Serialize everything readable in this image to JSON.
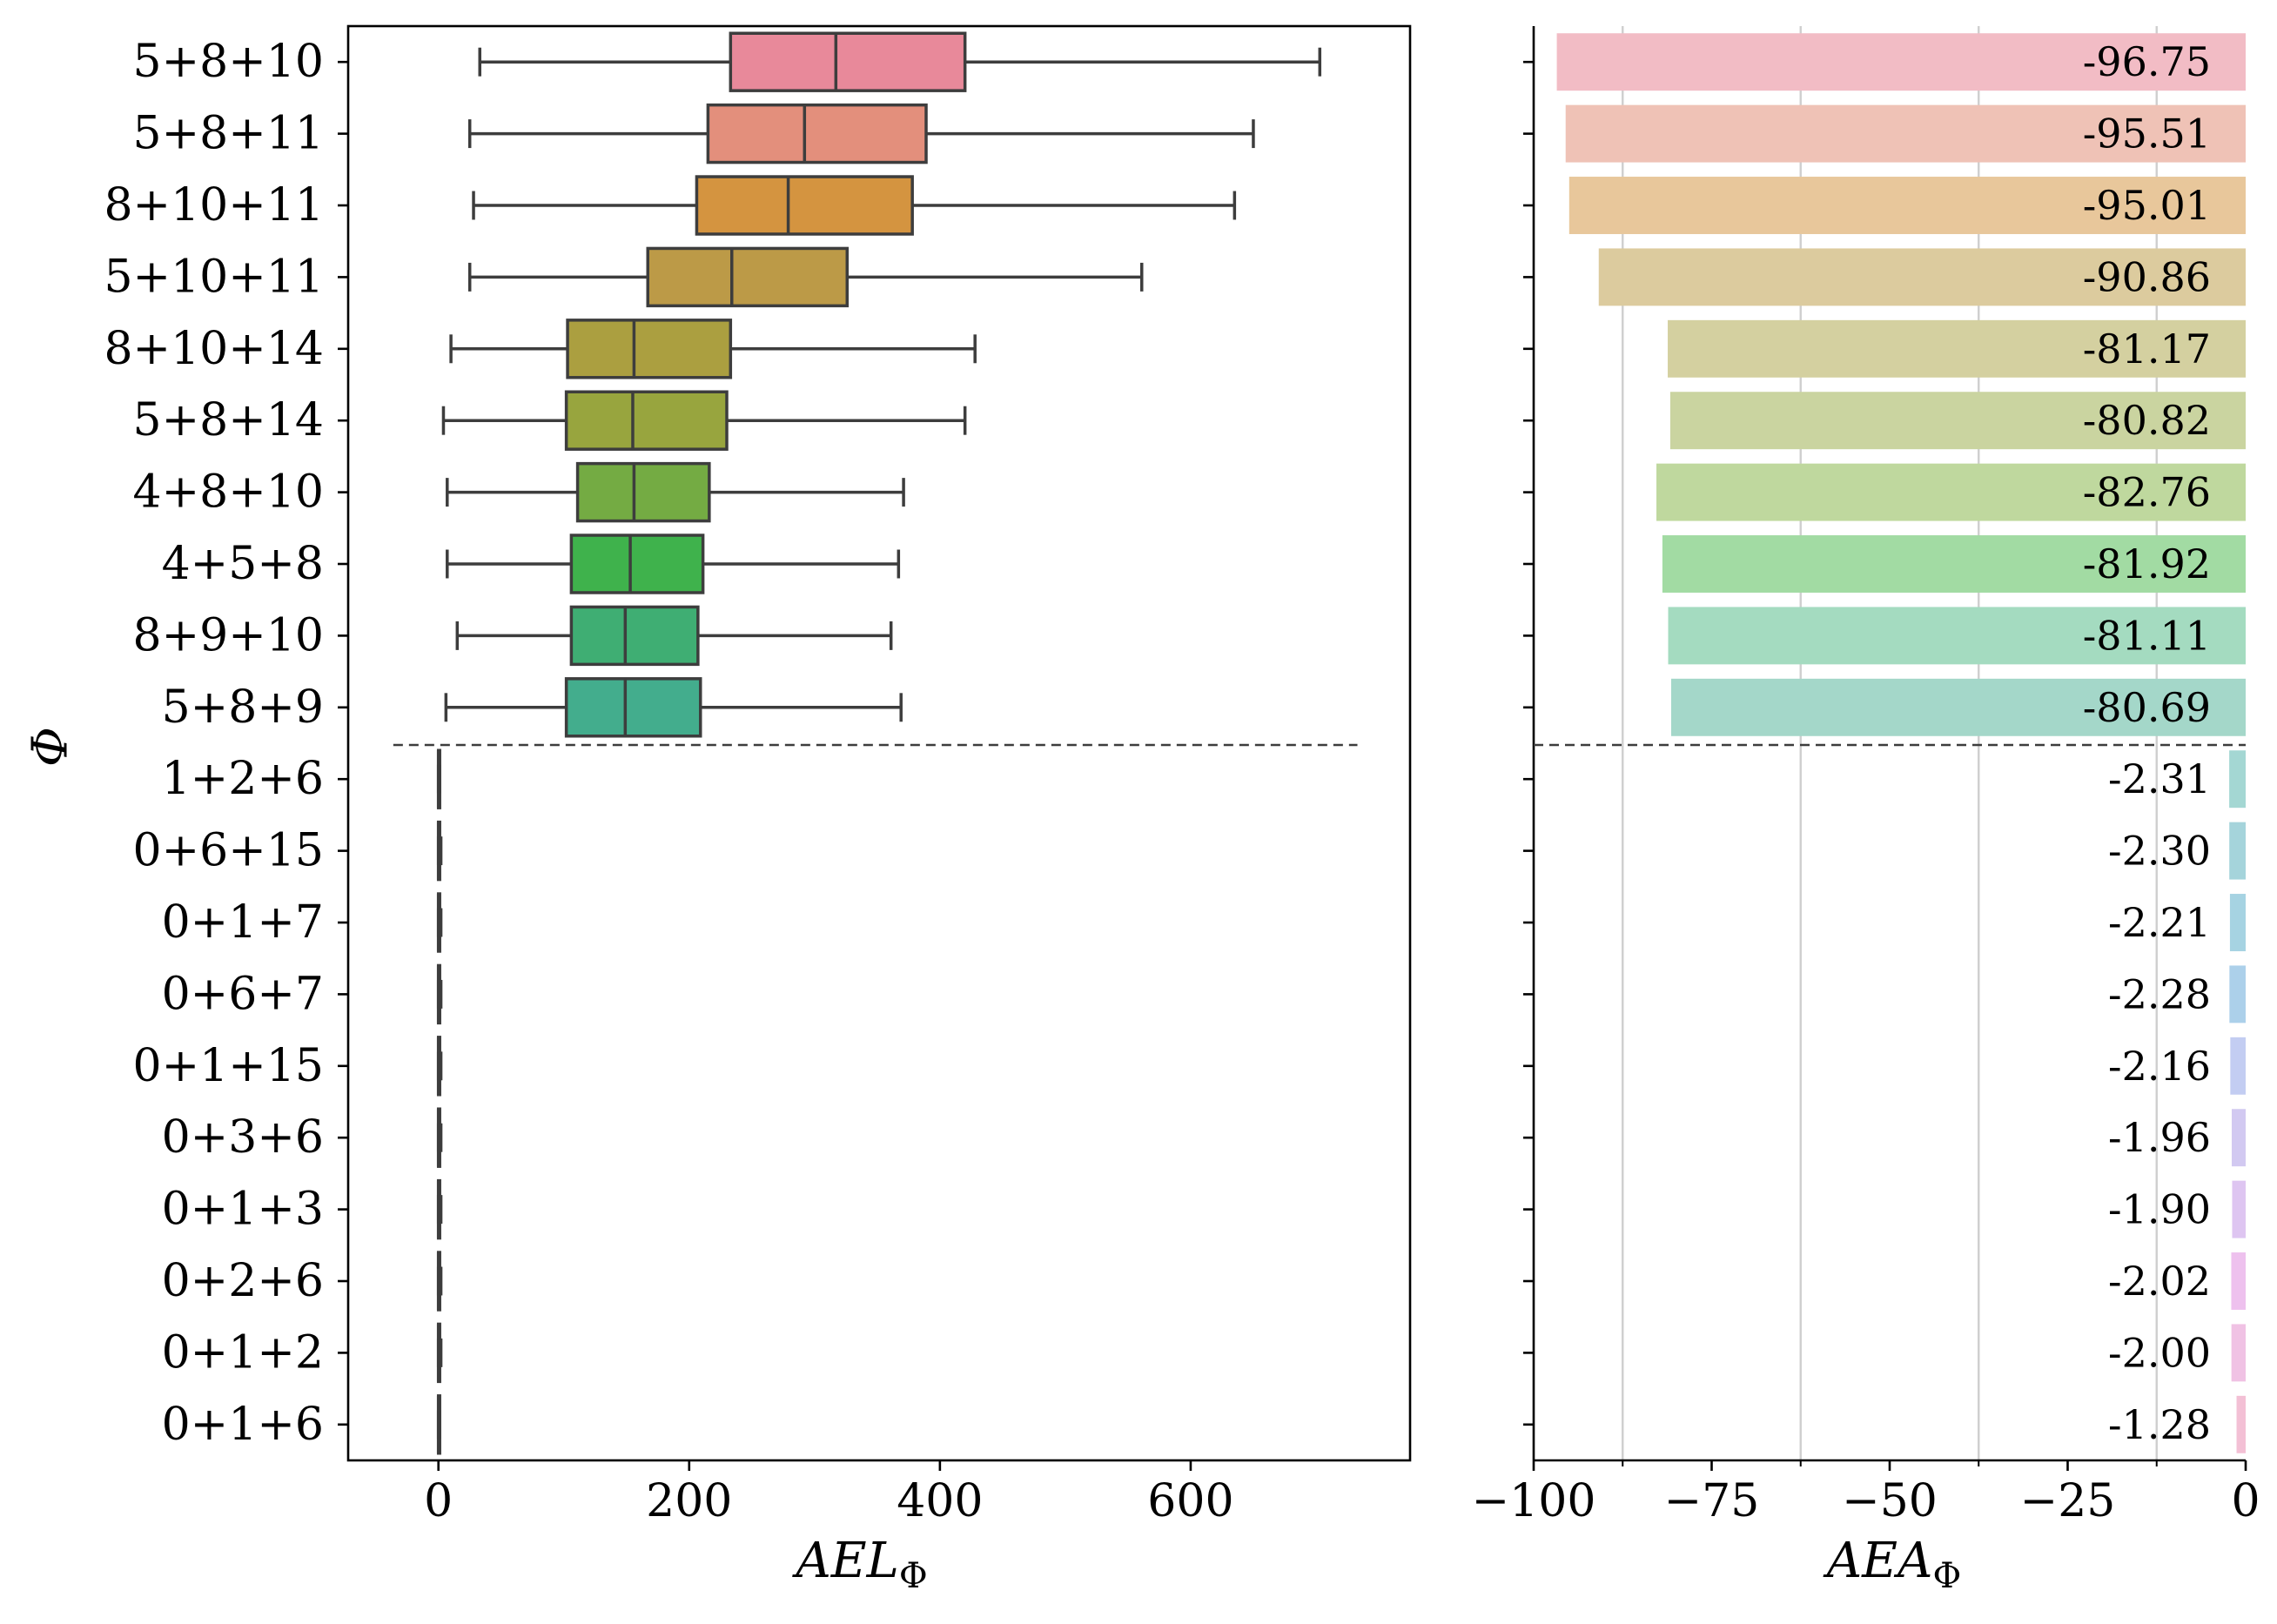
{
  "chart_data": [
    {
      "type": "box",
      "ylabel": "Φ",
      "xlabel": "AEL",
      "xlabel_sub": "Φ",
      "xlim": [
        -72,
        775
      ],
      "xticks": [
        0,
        200,
        400,
        600
      ],
      "xtick_labels": [
        "0",
        "200",
        "400",
        "600"
      ],
      "categories": [
        "5+8+10",
        "5+8+11",
        "8+10+11",
        "5+10+11",
        "8+10+14",
        "5+8+14",
        "4+8+10",
        "4+5+8",
        "8+9+10",
        "5+8+9",
        "1+2+6",
        "0+6+15",
        "0+1+7",
        "0+6+7",
        "0+1+15",
        "0+3+6",
        "0+1+3",
        "0+2+6",
        "0+1+2",
        "0+1+6"
      ],
      "boxes": [
        {
          "whislo": 33,
          "q1": 233,
          "med": 317,
          "q3": 420,
          "whishi": 703,
          "color": "#e8899a"
        },
        {
          "whislo": 25,
          "q1": 215,
          "med": 292,
          "q3": 389,
          "whishi": 650,
          "color": "#e38f7c"
        },
        {
          "whislo": 28,
          "q1": 206,
          "med": 279,
          "q3": 378,
          "whishi": 635,
          "color": "#d49440"
        },
        {
          "whislo": 25,
          "q1": 167,
          "med": 234,
          "q3": 326,
          "whishi": 561,
          "color": "#bc9a47"
        },
        {
          "whislo": 10,
          "q1": 103,
          "med": 156,
          "q3": 233,
          "whishi": 428,
          "color": "#ab9f40"
        },
        {
          "whislo": 4,
          "q1": 102,
          "med": 155,
          "q3": 230,
          "whishi": 420,
          "color": "#98a53e"
        },
        {
          "whislo": 7,
          "q1": 111,
          "med": 156,
          "q3": 216,
          "whishi": 371,
          "color": "#74ab43"
        },
        {
          "whislo": 7,
          "q1": 106,
          "med": 153,
          "q3": 211,
          "whishi": 367,
          "color": "#3fb24c"
        },
        {
          "whislo": 15,
          "q1": 106,
          "med": 149,
          "q3": 207,
          "whishi": 361,
          "color": "#3fae73"
        },
        {
          "whislo": 6,
          "q1": 102,
          "med": 149,
          "q3": 209,
          "whishi": 369,
          "color": "#43ad8d"
        },
        {
          "whislo": 0,
          "q1": 0,
          "med": 0,
          "q3": 1,
          "whishi": 1,
          "color": "#45aca0"
        },
        {
          "whislo": 0,
          "q1": 0,
          "med": 0,
          "q3": 1,
          "whishi": 2,
          "color": "#47aab1"
        },
        {
          "whislo": 0,
          "q1": 0,
          "med": 0,
          "q3": 1,
          "whishi": 2,
          "color": "#4aa8c1"
        },
        {
          "whislo": 0,
          "q1": 0,
          "med": 0,
          "q3": 1,
          "whishi": 2,
          "color": "#55a2d9"
        },
        {
          "whislo": 0,
          "q1": 0,
          "med": 0,
          "q3": 1,
          "whishi": 2,
          "color": "#8b9ee8"
        },
        {
          "whislo": 0,
          "q1": 0,
          "med": 0,
          "q3": 1,
          "whishi": 2,
          "color": "#ab93e8"
        },
        {
          "whislo": 0,
          "q1": 0,
          "med": 0,
          "q3": 1,
          "whishi": 2,
          "color": "#c98ae8"
        },
        {
          "whislo": 0,
          "q1": 0,
          "med": 0,
          "q3": 1,
          "whishi": 2,
          "color": "#e07fdd"
        },
        {
          "whislo": 0,
          "q1": 0,
          "med": 0,
          "q3": 1,
          "whishi": 2,
          "color": "#e485c2"
        },
        {
          "whislo": 0,
          "q1": 0,
          "med": 0,
          "q3": 1,
          "whishi": 1,
          "color": "#e88aa8"
        }
      ]
    },
    {
      "type": "bar",
      "orientation": "horizontal",
      "xlabel": "AEA",
      "xlabel_sub": "Φ",
      "xlim": [
        -100,
        0
      ],
      "xticks": [
        -100,
        -75,
        -50,
        -25,
        0
      ],
      "xtick_labels": [
        "−100",
        "−75",
        "−50",
        "−25",
        "0"
      ],
      "grid_lines": [
        -87.5,
        -62.5,
        -37.5,
        -12.5
      ],
      "values": [
        -96.75,
        -95.51,
        -95.01,
        -90.86,
        -81.17,
        -80.82,
        -82.76,
        -81.92,
        -81.11,
        -80.69,
        -2.31,
        -2.3,
        -2.21,
        -2.28,
        -2.16,
        -1.96,
        -1.9,
        -2.02,
        -2.0,
        -1.28
      ],
      "value_labels": [
        "-96.75",
        "-95.51",
        "-95.01",
        "-90.86",
        "-81.17",
        "-80.82",
        "-82.76",
        "-81.92",
        "-81.11",
        "-80.69",
        "-2.31",
        "-2.30",
        "-2.21",
        "-2.28",
        "-2.16",
        "-1.96",
        "-1.90",
        "-2.02",
        "-2.00",
        "-1.28"
      ],
      "colors": [
        "#f2bcc5",
        "#efc2b6",
        "#e8c79b",
        "#dccb9e",
        "#d4d0a0",
        "#cad4a0",
        "#bfd89e",
        "#a2dba3",
        "#a4dbc0",
        "#a4d7c9",
        "#a4d7d3",
        "#a5d4db",
        "#a6d3e2",
        "#acd0ea",
        "#c3cdf2",
        "#d2c9f1",
        "#dec5f1",
        "#eec1ee",
        "#f0c2e4",
        "#f3c0d5"
      ]
    }
  ]
}
